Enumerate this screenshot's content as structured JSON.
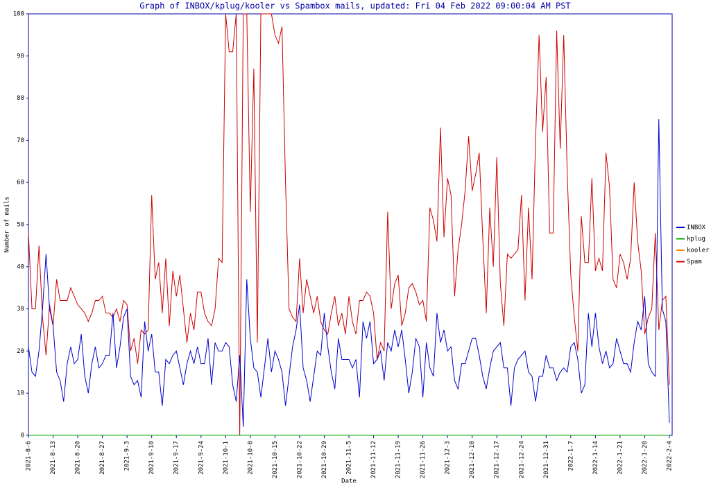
{
  "chart_data": {
    "type": "line",
    "title": "Graph of INBOX/kplug/kooler vs Spambox mails, updated: Fri 04 Feb 2022 09:00:04 AM PST",
    "x_label": "Date",
    "y_label": "Number of mails",
    "categories": [
      "2021-8-6",
      null,
      null,
      null,
      null,
      null,
      null,
      "2021-8-13",
      null,
      null,
      null,
      null,
      null,
      null,
      "2021-8-20",
      null,
      null,
      null,
      null,
      null,
      null,
      "2021-8-27",
      null,
      null,
      null,
      null,
      null,
      null,
      "2021-9-3",
      null,
      null,
      null,
      null,
      null,
      null,
      "2021-9-10",
      null,
      null,
      null,
      null,
      null,
      null,
      "2021-9-17",
      null,
      null,
      null,
      null,
      null,
      null,
      "2021-9-24",
      null,
      null,
      null,
      null,
      null,
      null,
      "2021-10-1",
      null,
      null,
      null,
      null,
      null,
      null,
      "2021-10-8",
      null,
      null,
      null,
      null,
      null,
      null,
      "2021-10-15",
      null,
      null,
      null,
      null,
      null,
      null,
      "2021-10-22",
      null,
      null,
      null,
      null,
      null,
      null,
      "2021-10-29",
      null,
      null,
      null,
      null,
      null,
      null,
      "2021-11-5",
      null,
      null,
      null,
      null,
      null,
      null,
      "2021-11-12",
      null,
      null,
      null,
      null,
      null,
      null,
      "2021-11-19",
      null,
      null,
      null,
      null,
      null,
      null,
      "2021-11-26",
      null,
      null,
      null,
      null,
      null,
      null,
      "2021-12-3",
      null,
      null,
      null,
      null,
      null,
      null,
      "2021-12-10",
      null,
      null,
      null,
      null,
      null,
      null,
      "2021-12-17",
      null,
      null,
      null,
      null,
      null,
      null,
      "2021-12-24",
      null,
      null,
      null,
      null,
      null,
      null,
      "2021-12-31",
      null,
      null,
      null,
      null,
      null,
      null,
      "2022-1-7",
      null,
      null,
      null,
      null,
      null,
      null,
      "2022-1-14",
      null,
      null,
      null,
      null,
      null,
      null,
      "2022-1-21",
      null,
      null,
      null,
      null,
      null,
      null,
      "2022-1-28",
      null,
      null,
      null,
      null,
      null,
      null,
      "2022-2-4"
    ],
    "series": [
      {
        "name": "INBOX",
        "color": "#0000cc",
        "values": [
          21,
          15,
          14,
          20,
          30,
          43,
          30,
          26,
          15,
          13,
          8,
          17,
          21,
          17,
          18,
          24,
          14,
          10,
          17,
          21,
          16,
          17,
          19,
          19,
          29,
          16,
          21,
          28,
          30,
          14,
          12,
          13,
          9,
          27,
          20,
          24,
          15,
          15,
          7,
          18,
          17,
          19,
          20,
          16,
          12,
          17,
          20,
          17,
          21,
          17,
          17,
          23,
          12,
          22,
          20,
          20,
          22,
          21,
          12,
          8,
          19,
          2,
          37,
          23,
          16,
          15,
          9,
          16,
          23,
          15,
          20,
          18,
          15,
          7,
          14,
          21,
          25,
          31,
          16,
          13,
          8,
          14,
          20,
          19,
          29,
          21,
          15,
          11,
          23,
          18,
          18,
          18,
          16,
          18,
          9,
          27,
          23,
          27,
          17,
          18,
          20,
          13,
          22,
          20,
          25,
          21,
          25,
          18,
          10,
          15,
          23,
          21,
          9,
          22,
          16,
          14,
          29,
          22,
          25,
          20,
          21,
          13,
          11,
          17,
          17,
          20,
          23,
          23,
          19,
          14,
          11,
          16,
          20,
          21,
          22,
          16,
          16,
          7,
          16,
          18,
          19,
          20,
          15,
          14,
          8,
          14,
          14,
          19,
          16,
          16,
          13,
          15,
          16,
          15,
          21,
          22,
          18,
          10,
          12,
          29,
          21,
          29,
          21,
          17,
          20,
          16,
          17,
          23,
          20,
          17,
          17,
          15,
          22,
          27,
          25,
          33,
          17,
          15,
          14,
          75,
          30,
          27,
          3
        ]
      },
      {
        "name": "kplug",
        "color": "#00aa00",
        "values": [
          0,
          0,
          0,
          0,
          0,
          0,
          0,
          0,
          0,
          0,
          0,
          0,
          0,
          0,
          0,
          0,
          0,
          0,
          0,
          0,
          0,
          0,
          0,
          0,
          0,
          0,
          0,
          0,
          0,
          0,
          0,
          0,
          0,
          0,
          0,
          0,
          0,
          0,
          0,
          0,
          0,
          0,
          0,
          0,
          0,
          0,
          0,
          0,
          0,
          0,
          0,
          0,
          0,
          0,
          0,
          0,
          0,
          0,
          0,
          0,
          0,
          0,
          0,
          0,
          0,
          0,
          0,
          0,
          0,
          0,
          0,
          0,
          0,
          0,
          0,
          0,
          0,
          0,
          0,
          0,
          0,
          0,
          0,
          0,
          0,
          0,
          0,
          0,
          0,
          0,
          0,
          0,
          0,
          0,
          0,
          0,
          0,
          0,
          0,
          0,
          0,
          0,
          0,
          0,
          0,
          0,
          0,
          0,
          0,
          0,
          0,
          0,
          0,
          0,
          0,
          0,
          0,
          0,
          0,
          0,
          0,
          0,
          0,
          0,
          0,
          0,
          0,
          0,
          0,
          0,
          0,
          0,
          0,
          0,
          0,
          0,
          0,
          0,
          0,
          0,
          0,
          0,
          0,
          0,
          0,
          0,
          0,
          0,
          0,
          0,
          0,
          0,
          0,
          0,
          0,
          0,
          0,
          0,
          0,
          0,
          0,
          0,
          0,
          0,
          0,
          0,
          0,
          0,
          0,
          0,
          0,
          0,
          0,
          0,
          0,
          0,
          0,
          0,
          0,
          0,
          0,
          0,
          0
        ]
      },
      {
        "name": "kooler",
        "color": "#ff8800",
        "values": [
          0,
          0,
          0,
          0,
          0,
          0,
          0,
          0,
          0,
          0,
          0,
          0,
          0,
          0,
          0,
          0,
          0,
          0,
          0,
          0,
          0,
          0,
          0,
          0,
          0,
          0,
          0,
          0,
          0,
          0,
          0,
          0,
          0,
          0,
          0,
          0,
          0,
          0,
          0,
          0,
          0,
          0,
          0,
          0,
          0,
          0,
          0,
          0,
          0,
          0,
          0,
          0,
          0,
          0,
          0,
          0,
          0,
          0,
          0,
          0,
          0,
          0,
          0,
          0,
          0,
          0,
          0,
          0,
          0,
          0,
          0,
          0,
          0,
          0,
          0,
          0,
          0,
          0,
          0,
          0,
          0,
          0,
          0,
          0,
          0,
          0,
          0,
          0,
          0,
          0,
          0,
          0,
          0,
          0,
          0,
          0,
          0,
          0,
          0,
          0,
          0,
          0,
          0,
          0,
          0,
          0,
          0,
          0,
          0,
          0,
          0,
          0,
          0,
          0,
          0,
          0,
          0,
          0,
          0,
          0,
          0,
          0,
          0,
          0,
          0,
          0,
          0,
          0,
          0,
          0,
          0,
          0,
          0,
          0,
          0,
          0,
          0,
          0,
          0,
          0,
          0,
          0,
          0,
          0,
          0,
          0,
          0,
          0,
          0,
          0,
          0,
          0,
          0,
          0,
          0,
          0,
          0,
          0,
          0,
          0,
          0,
          0,
          0,
          0,
          0,
          0,
          0,
          0,
          0,
          0,
          0,
          0,
          0,
          0,
          0,
          0,
          0,
          0,
          0,
          0,
          0,
          0,
          0
        ]
      },
      {
        "name": "Spam",
        "color": "#cc0000",
        "values": [
          48,
          30,
          30,
          45,
          28,
          19,
          31,
          26,
          37,
          32,
          32,
          32,
          35,
          33,
          31,
          30,
          29,
          27,
          29,
          32,
          32,
          33,
          29,
          29,
          28,
          30,
          27,
          32,
          31,
          20,
          23,
          17,
          25,
          24,
          25,
          57,
          37,
          41,
          29,
          42,
          26,
          39,
          33,
          38,
          30,
          22,
          29,
          25,
          34,
          34,
          29,
          27,
          26,
          30,
          42,
          41,
          100,
          91,
          91,
          100,
          0,
          100,
          100,
          53,
          87,
          22,
          100,
          100,
          100,
          100,
          95,
          93,
          97,
          60,
          30,
          28,
          27,
          42,
          29,
          37,
          33,
          29,
          33,
          27,
          25,
          24,
          29,
          33,
          26,
          29,
          24,
          33,
          27,
          24,
          32,
          32,
          34,
          33,
          29,
          18,
          22,
          20,
          53,
          30,
          36,
          38,
          26,
          29,
          35,
          36,
          34,
          31,
          32,
          27,
          54,
          51,
          46,
          73,
          47,
          61,
          57,
          33,
          44,
          50,
          58,
          71,
          58,
          62,
          67,
          47,
          29,
          54,
          40,
          66,
          36,
          26,
          43,
          42,
          43,
          44,
          57,
          32,
          54,
          37,
          70,
          95,
          72,
          85,
          48,
          48,
          96,
          68,
          95,
          62,
          38,
          28,
          20,
          52,
          41,
          41,
          61,
          39,
          42,
          39,
          67,
          59,
          37,
          35,
          43,
          41,
          37,
          42,
          60,
          46,
          39,
          24,
          28,
          30,
          48,
          25,
          32,
          33,
          12
        ]
      }
    ],
    "ylim": [
      0,
      100
    ],
    "yticks": [
      0,
      10,
      20,
      30,
      40,
      50,
      60,
      70,
      80,
      90,
      100
    ],
    "grid": false,
    "legend": "right"
  }
}
